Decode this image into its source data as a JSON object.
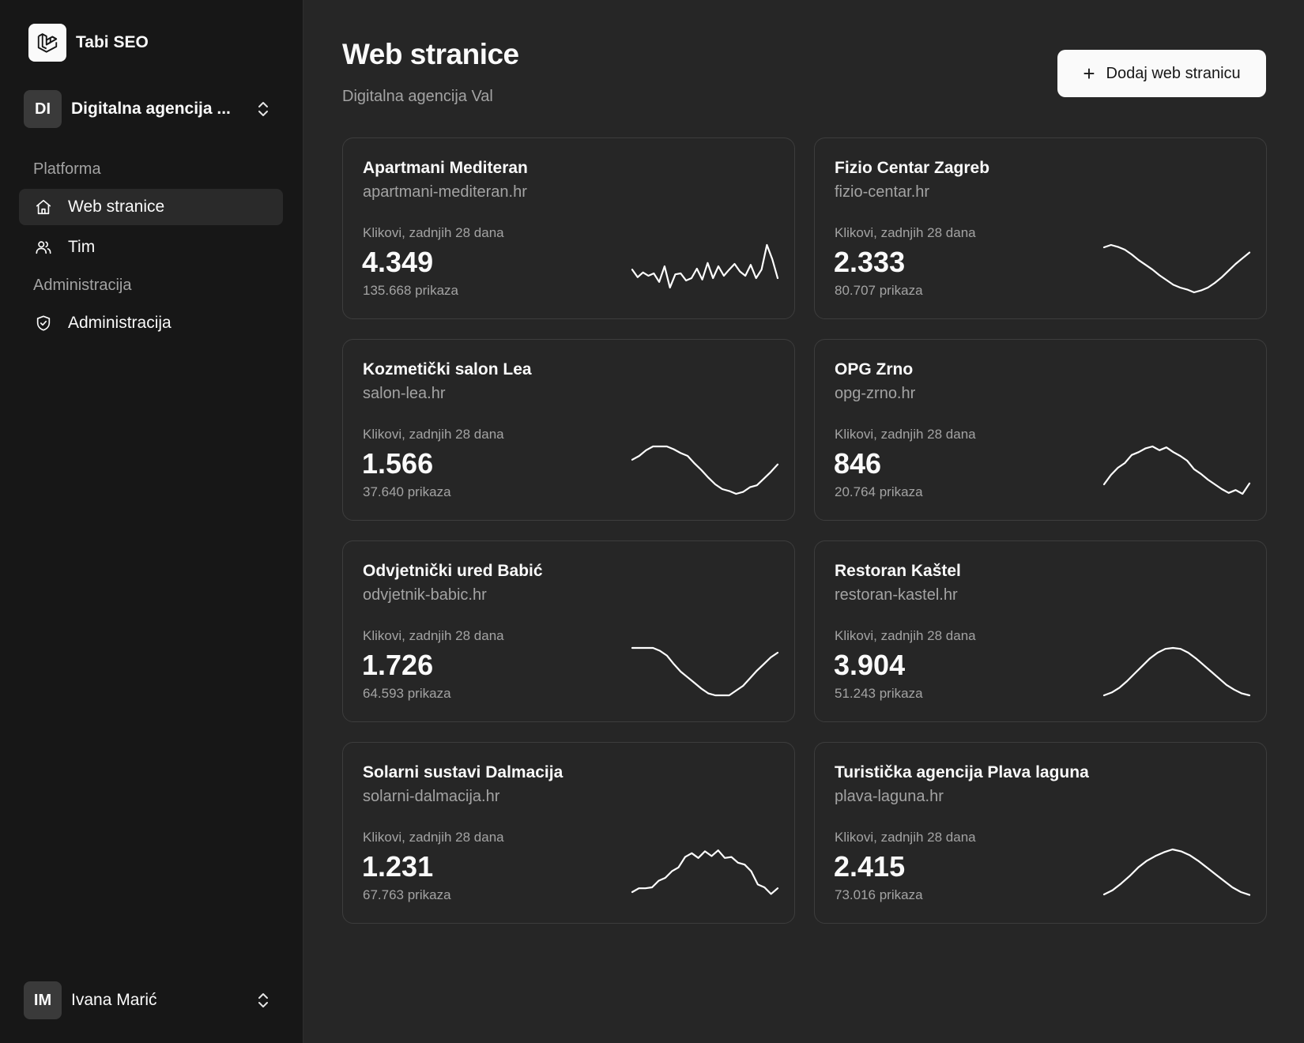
{
  "brand": {
    "name": "Tabi SEO",
    "logo_icon": "laravel-logo-icon"
  },
  "team": {
    "initials": "DI",
    "name": "Digitalna agencija ..."
  },
  "nav": {
    "group_platform": "Platforma",
    "group_admin": "Administracija",
    "items": [
      {
        "label": "Web stranice",
        "icon": "home-icon",
        "active": true
      },
      {
        "label": "Tim",
        "icon": "users-icon",
        "active": false
      },
      {
        "label": "Administracija",
        "icon": "shield-icon",
        "active": false
      }
    ]
  },
  "user": {
    "initials": "IM",
    "name": "Ivana Marić"
  },
  "page": {
    "title": "Web stranice",
    "subtitle": "Digitalna agencija Val",
    "add_button": "Dodaj web stranicu"
  },
  "metric_label": "Klikovi, zadnjih 28 dana",
  "sites": [
    {
      "name": "Apartmani Mediteran",
      "domain": "apartmani-mediteran.hr",
      "clicks": "4.349",
      "views": "135.668 prikaza",
      "trend": [
        0.48,
        0.32,
        0.42,
        0.35,
        0.4,
        0.22,
        0.55,
        0.1,
        0.38,
        0.4,
        0.25,
        0.3,
        0.5,
        0.27,
        0.62,
        0.3,
        0.55,
        0.35,
        0.48,
        0.6,
        0.44,
        0.35,
        0.58,
        0.3,
        0.48,
        1.0,
        0.7,
        0.3
      ]
    },
    {
      "name": "Fizio Centar Zagreb",
      "domain": "fizio-centar.hr",
      "clicks": "2.333",
      "views": "80.707 prikaza",
      "trend": [
        0.95,
        1.0,
        0.96,
        0.9,
        0.8,
        0.68,
        0.58,
        0.48,
        0.36,
        0.26,
        0.16,
        0.1,
        0.06,
        0.0,
        0.04,
        0.1,
        0.2,
        0.32,
        0.46,
        0.6,
        0.72,
        0.84
      ]
    },
    {
      "name": "Kozmetički salon Lea",
      "domain": "salon-lea.hr",
      "clicks": "1.566",
      "views": "37.640 prikaza",
      "trend": [
        0.72,
        0.8,
        0.92,
        1.0,
        1.0,
        1.0,
        0.94,
        0.86,
        0.8,
        0.64,
        0.5,
        0.34,
        0.2,
        0.1,
        0.06,
        0.0,
        0.04,
        0.14,
        0.18,
        0.32,
        0.46,
        0.62
      ]
    },
    {
      "name": "OPG Zrno",
      "domain": "opg-zrno.hr",
      "clicks": "846",
      "views": "20.764 prikaza",
      "trend": [
        0.2,
        0.4,
        0.55,
        0.65,
        0.82,
        0.88,
        0.96,
        1.0,
        0.92,
        0.98,
        0.88,
        0.8,
        0.7,
        0.52,
        0.42,
        0.3,
        0.2,
        0.1,
        0.02,
        0.08,
        0.0,
        0.22
      ]
    },
    {
      "name": "Odvjetnički ured Babić",
      "domain": "odvjetnik-babic.hr",
      "clicks": "1.726",
      "views": "64.593 prikaza",
      "trend": [
        1.0,
        1.0,
        1.0,
        1.0,
        0.94,
        0.84,
        0.66,
        0.5,
        0.38,
        0.26,
        0.14,
        0.04,
        0.0,
        0.0,
        0.0,
        0.1,
        0.2,
        0.36,
        0.52,
        0.66,
        0.8,
        0.9
      ]
    },
    {
      "name": "Restoran Kaštel",
      "domain": "restoran-kastel.hr",
      "clicks": "3.904",
      "views": "51.243 prikaza",
      "trend": [
        0.0,
        0.06,
        0.16,
        0.3,
        0.46,
        0.62,
        0.78,
        0.9,
        0.98,
        1.0,
        0.98,
        0.9,
        0.78,
        0.64,
        0.5,
        0.36,
        0.22,
        0.12,
        0.04,
        0.0
      ]
    },
    {
      "name": "Solarni sustavi Dalmacija",
      "domain": "solarni-dalmacija.hr",
      "clicks": "1.231",
      "views": "67.763 prikaza",
      "trend": [
        0.1,
        0.18,
        0.18,
        0.2,
        0.34,
        0.4,
        0.54,
        0.62,
        0.84,
        0.92,
        0.82,
        0.96,
        0.86,
        0.98,
        0.82,
        0.84,
        0.72,
        0.68,
        0.54,
        0.26,
        0.2,
        0.06,
        0.18
      ]
    },
    {
      "name": "Turistička agencija Plava laguna",
      "domain": "plava-laguna.hr",
      "clicks": "2.415",
      "views": "73.016 prikaza",
      "trend": [
        0.05,
        0.14,
        0.28,
        0.44,
        0.62,
        0.76,
        0.86,
        0.94,
        1.0,
        0.96,
        0.88,
        0.76,
        0.62,
        0.48,
        0.34,
        0.2,
        0.1,
        0.04
      ]
    }
  ]
}
